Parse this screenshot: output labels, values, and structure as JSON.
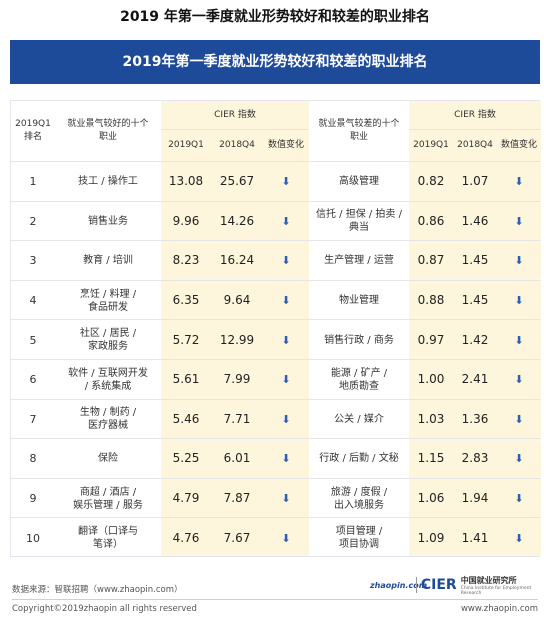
{
  "page_title": "2019 年第一季度就业形势较好和较差的职业排名",
  "banner_title": "2019年第一季度就业形势较好和较差的职业排名",
  "header": {
    "rank": "2019Q1\n排名",
    "good_occupation": "就业景气较好的十个\n职业",
    "cier_index_left": "CIER 指数",
    "cier_index_right": "CIER 指数",
    "q1": "2019Q1",
    "q4": "2018Q4",
    "change": "数值变化",
    "bad_occupation": "就业景气较差的十个\n职业",
    "q1_r": "2019Q1",
    "q4_r": "2018Q4",
    "change_r": "数值变化"
  },
  "rows": [
    {
      "rank": "1",
      "good": "技工 / 操作工",
      "g_q1": "13.08",
      "g_q4": "25.67",
      "g_dir": "down",
      "bad": "高级管理",
      "b_q1": "0.82",
      "b_q4": "1.07",
      "b_dir": "down"
    },
    {
      "rank": "2",
      "good": "销售业务",
      "g_q1": "9.96",
      "g_q4": "14.26",
      "g_dir": "down",
      "bad": "信托 / 担保 / 拍卖 /\n典当",
      "b_q1": "0.86",
      "b_q4": "1.46",
      "b_dir": "down"
    },
    {
      "rank": "3",
      "good": "教育 / 培训",
      "g_q1": "8.23",
      "g_q4": "16.24",
      "g_dir": "down",
      "bad": "生产管理 / 运营",
      "b_q1": "0.87",
      "b_q4": "1.45",
      "b_dir": "down"
    },
    {
      "rank": "4",
      "good": "烹饪 / 料理 /\n食品研发",
      "g_q1": "6.35",
      "g_q4": "9.64",
      "g_dir": "down",
      "bad": "物业管理",
      "b_q1": "0.88",
      "b_q4": "1.45",
      "b_dir": "down"
    },
    {
      "rank": "5",
      "good": "社区 / 居民 /\n家政服务",
      "g_q1": "5.72",
      "g_q4": "12.99",
      "g_dir": "down",
      "bad": "销售行政 / 商务",
      "b_q1": "0.97",
      "b_q4": "1.42",
      "b_dir": "down"
    },
    {
      "rank": "6",
      "good": "软件 / 互联网开发\n/ 系统集成",
      "g_q1": "5.61",
      "g_q4": "7.99",
      "g_dir": "down",
      "bad": "能源 / 矿产 /\n地质勘查",
      "b_q1": "1.00",
      "b_q4": "2.41",
      "b_dir": "down"
    },
    {
      "rank": "7",
      "good": "生物 / 制药 /\n医疗器械",
      "g_q1": "5.46",
      "g_q4": "7.71",
      "g_dir": "down",
      "bad": "公关 / 媒介",
      "b_q1": "1.03",
      "b_q4": "1.36",
      "b_dir": "down"
    },
    {
      "rank": "8",
      "good": "保险",
      "g_q1": "5.25",
      "g_q4": "6.01",
      "g_dir": "down",
      "bad": "行政 / 后勤 / 文秘",
      "b_q1": "1.15",
      "b_q4": "2.83",
      "b_dir": "down"
    },
    {
      "rank": "9",
      "good": "商超 / 酒店 /\n娱乐管理 / 服务",
      "g_q1": "4.79",
      "g_q4": "7.87",
      "g_dir": "down",
      "bad": "旅游 / 度假 /\n出入境服务",
      "b_q1": "1.06",
      "b_q4": "1.94",
      "b_dir": "down"
    },
    {
      "rank": "10",
      "good": "翻译（口译与\n笔译）",
      "g_q1": "4.76",
      "g_q4": "7.67",
      "g_dir": "down",
      "bad": "项目管理 /\n项目协调",
      "b_q1": "1.09",
      "b_q4": "1.41",
      "b_dir": "down"
    }
  ],
  "icons": {
    "down_arrow": "down-arrow-icon"
  },
  "colors": {
    "banner": "#1e4a9a",
    "highlight_col": "#fdf6dc",
    "arrow": "#2f5fb3"
  },
  "footer": {
    "source": "数据来源：智联招聘（www.zhaopin.com）",
    "copyright": "Copyright©2019zhaopin all rights reserved",
    "url": "www.zhaopin.com",
    "logo_zhaopin": "zhaopin.com",
    "logo_cier": "CIER",
    "logo_cier_cn": "中国就业研究所",
    "logo_cier_en": "China Institute for Employment Research"
  }
}
